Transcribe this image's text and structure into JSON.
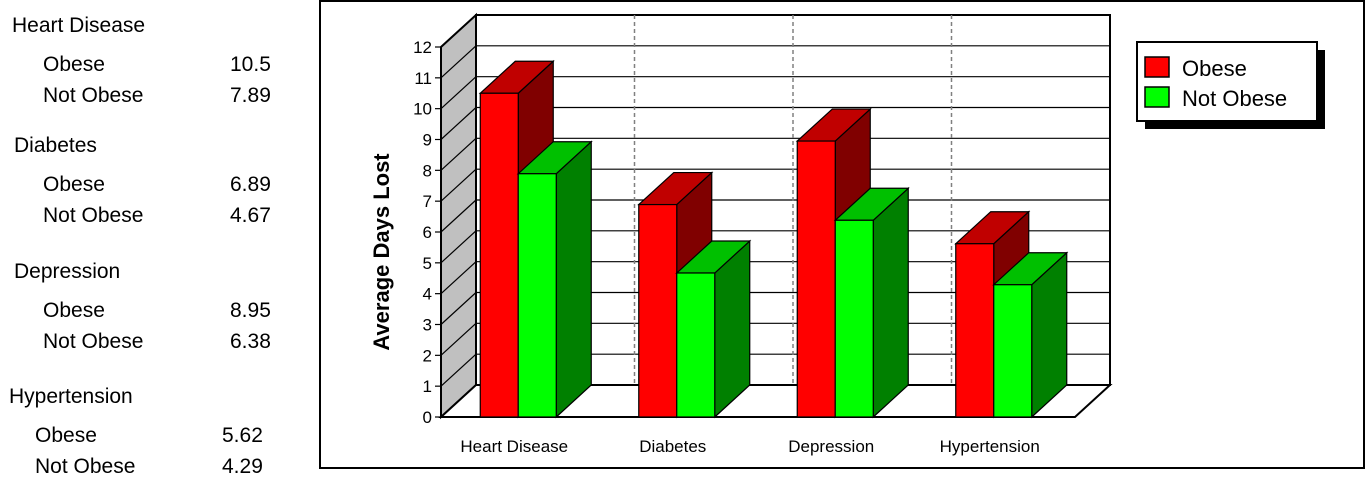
{
  "table": [
    {
      "category": "Heart Disease",
      "rows": [
        {
          "label": "Obese",
          "value": "10.5"
        },
        {
          "label": "Not Obese",
          "value": "7.89"
        }
      ]
    },
    {
      "category": "Diabetes",
      "rows": [
        {
          "label": "Obese",
          "value": "6.89"
        },
        {
          "label": "Not Obese",
          "value": "4.67"
        }
      ]
    },
    {
      "category": "Depression",
      "rows": [
        {
          "label": "Obese",
          "value": "8.95"
        },
        {
          "label": "Not Obese",
          "value": "6.38"
        }
      ]
    },
    {
      "category": "Hypertension",
      "rows": [
        {
          "label": "Obese",
          "value": "5.62"
        },
        {
          "label": "Not Obese",
          "value": "4.29"
        }
      ]
    }
  ],
  "chart_data": {
    "type": "bar",
    "title": "",
    "xlabel": "",
    "ylabel": "Average Days Lost",
    "categories": [
      "Heart Disease",
      "Diabetes",
      "Depression",
      "Hypertension"
    ],
    "series": [
      {
        "name": "Obese",
        "values": [
          10.5,
          6.89,
          8.95,
          5.62
        ],
        "color": "#ff0000",
        "side_color": "#800000"
      },
      {
        "name": "Not Obese",
        "values": [
          7.89,
          4.67,
          6.38,
          4.29
        ],
        "color": "#00ff00",
        "side_color": "#008000"
      }
    ],
    "yticks": [
      "0",
      "1",
      "2",
      "3",
      "4",
      "5",
      "6",
      "7",
      "8",
      "9",
      "10",
      "11",
      "12"
    ],
    "ylim": [
      0,
      12
    ],
    "grid": true,
    "legend": "top-right",
    "colors": {
      "wall": "#c0c0c0"
    }
  }
}
